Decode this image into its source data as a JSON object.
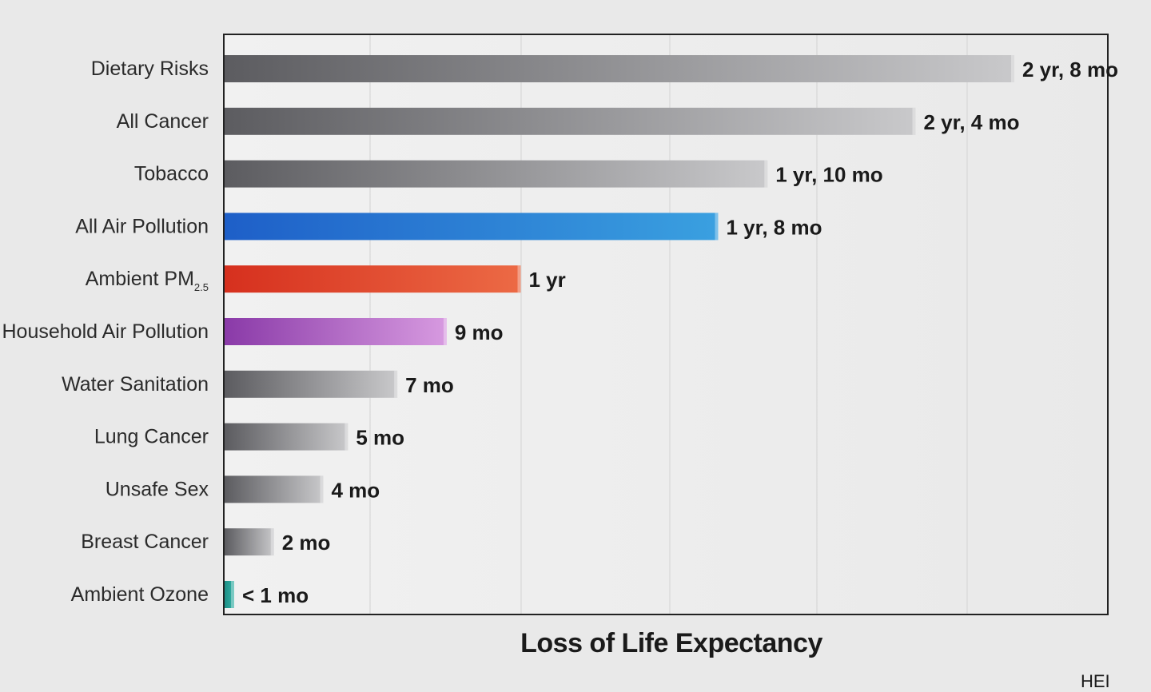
{
  "chart_data": {
    "type": "bar",
    "orientation": "horizontal",
    "categories": [
      "Dietary Risks",
      "All Cancer",
      "Tobacco",
      "All Air Pollution",
      "Ambient PM",
      "Household Air Pollution",
      "Water Sanitation",
      "Lung Cancer",
      "Unsafe Sex",
      "Breast Cancer",
      "Ambient Ozone"
    ],
    "category_subscripts": {
      "Ambient PM": "2.5"
    },
    "values_months": [
      32,
      28,
      22,
      20,
      12,
      9,
      7,
      5,
      4,
      2,
      0.3
    ],
    "value_labels": [
      "2 yr, 8 mo",
      "2 yr, 4 mo",
      "1 yr, 10 mo",
      "1 yr, 8 mo",
      "1 yr",
      "9 mo",
      "7 mo",
      "5 mo",
      "4 mo",
      "2 mo",
      "< 1 mo"
    ],
    "colors": [
      "gray",
      "gray",
      "gray",
      "#1f6fd0",
      "#e0402a",
      "#a04ab0",
      "gray",
      "gray",
      "gray",
      "gray",
      "#2aa198"
    ],
    "xlabel": "Loss of Life Expectancy",
    "xlim": [
      0,
      36
    ],
    "grid": "vertical",
    "source": "HEI"
  }
}
